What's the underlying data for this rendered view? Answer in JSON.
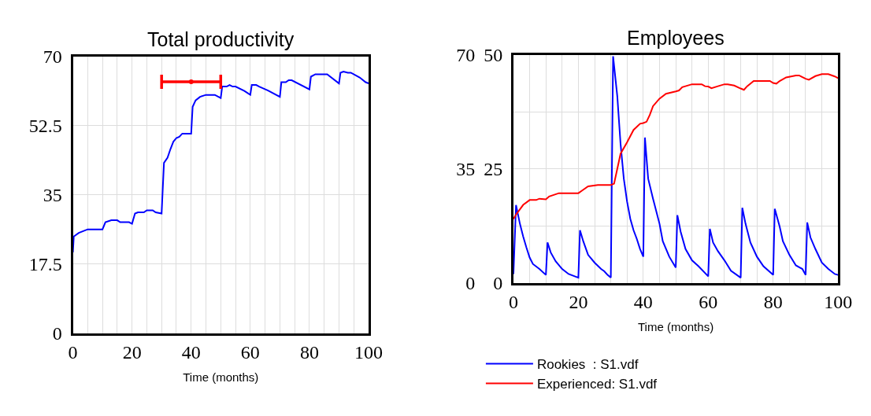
{
  "chart_data": [
    {
      "type": "line",
      "title": "Total productivity",
      "xlabel": "Time (months)",
      "xlim": [
        0,
        100
      ],
      "ylim": [
        0,
        70
      ],
      "xticks": [
        0,
        {
          "value": 5,
          "label": null
        },
        {
          "value": 10,
          "label": null
        },
        {
          "value": 15,
          "label": null
        },
        20,
        {
          "value": 25,
          "label": null
        },
        {
          "value": 30,
          "label": null
        },
        {
          "value": 35,
          "label": null
        },
        40,
        {
          "value": 45,
          "label": null
        },
        {
          "value": 50,
          "label": null
        },
        {
          "value": 55,
          "label": null
        },
        60,
        {
          "value": 65,
          "label": null
        },
        {
          "value": 70,
          "label": null
        },
        {
          "value": 75,
          "label": null
        },
        80,
        {
          "value": 85,
          "label": null
        },
        {
          "value": 90,
          "label": null
        },
        {
          "value": 95,
          "label": null
        },
        100
      ],
      "yticks": [
        0,
        17.5,
        35,
        52.5,
        70
      ],
      "grid": true,
      "legend": false,
      "series": [
        {
          "color": "#0000ff",
          "x": [
            0,
            0.3,
            2,
            5,
            10,
            11,
            13,
            15,
            16,
            19,
            20,
            21,
            22,
            24,
            25,
            27,
            28,
            30,
            30.8,
            32,
            33,
            34,
            35,
            36,
            37,
            40,
            40.5,
            41.5,
            43,
            45,
            48,
            50,
            50.5,
            52,
            53,
            54,
            55,
            58,
            60,
            60.5,
            62,
            63,
            66,
            70,
            70.5,
            72,
            73,
            74,
            80,
            80.5,
            82,
            86,
            90,
            90.5,
            91.5,
            93,
            94,
            97,
            99,
            100
          ],
          "values": [
            20.5,
            24.5,
            25.4,
            26.3,
            26.3,
            28.1,
            28.6,
            28.6,
            28.1,
            28.1,
            27.7,
            30.3,
            30.6,
            30.6,
            31.1,
            31.1,
            30.6,
            30.3,
            43.1,
            44.4,
            46.6,
            48.5,
            49.4,
            49.7,
            50.5,
            50.5,
            57.3,
            58.9,
            59.8,
            60.3,
            60.3,
            59.5,
            62.4,
            62.4,
            62.8,
            62.4,
            62.4,
            61.3,
            60.3,
            62.8,
            62.8,
            62.4,
            61.4,
            59.8,
            63.5,
            63.5,
            64.0,
            64.0,
            61.7,
            64.9,
            65.5,
            65.5,
            63.2,
            65.9,
            66.2,
            65.9,
            65.9,
            64.7,
            63.5,
            63.2
          ]
        },
        {
          "type": "scatter",
          "color": "#ff0000",
          "x": [
            40
          ],
          "values": [
            63.6
          ],
          "xerrors": [
            10
          ],
          "marker": "none"
        }
      ]
    },
    {
      "type": "line",
      "title": "Employees",
      "xlabel": "Time (months)",
      "xlim": [
        0,
        100
      ],
      "ylim": [
        0,
        50
      ],
      "y2lim": [
        0,
        70
      ],
      "xticks": [
        0,
        {
          "value": 5,
          "label": null
        },
        {
          "value": 10,
          "label": null
        },
        {
          "value": 15,
          "label": null
        },
        20,
        {
          "value": 25,
          "label": null
        },
        {
          "value": 30,
          "label": null
        },
        {
          "value": 35,
          "label": null
        },
        40,
        {
          "value": 45,
          "label": null
        },
        {
          "value": 50,
          "label": null
        },
        {
          "value": 55,
          "label": null
        },
        60,
        {
          "value": 65,
          "label": null
        },
        {
          "value": 70,
          "label": null
        },
        {
          "value": 75,
          "label": null
        },
        80,
        {
          "value": 85,
          "label": null
        },
        {
          "value": 90,
          "label": null
        },
        {
          "value": 95,
          "label": null
        },
        100
      ],
      "yticks": [
        0,
        {
          "value": 12.5,
          "label": null
        },
        25,
        {
          "value": 37.5,
          "label": null
        },
        50
      ],
      "y2ticks": [
        0,
        35,
        70
      ],
      "grid": true,
      "legend": "bottom",
      "series": [
        {
          "name": "Rookies  : S1.vdf",
          "color": "#0000ff",
          "x": [
            0,
            0.8,
            2,
            3,
            4,
            5,
            6,
            8,
            10,
            10.5,
            11.5,
            13,
            15,
            17,
            20,
            20.5,
            21.5,
            23,
            25,
            27,
            28,
            29,
            30,
            30.7,
            32,
            33,
            34,
            35,
            36,
            37,
            38,
            39,
            40,
            40.5,
            41.5,
            43,
            45,
            46,
            48,
            50,
            50.5,
            51.5,
            53,
            55,
            57,
            60,
            60.5,
            61.5,
            63,
            65,
            67,
            70,
            70.5,
            71.5,
            73,
            75,
            77,
            80,
            80.5,
            82,
            83,
            85,
            87,
            89,
            90,
            90.5,
            91.5,
            93,
            95,
            97,
            99,
            100
          ],
          "values": [
            2.0,
            17.1,
            13.0,
            10.2,
            7.8,
            5.6,
            4.2,
            3.1,
            1.8,
            8.9,
            6.7,
            4.8,
            3.1,
            2.0,
            1.2,
            11.6,
            9.2,
            6.2,
            4.5,
            3.1,
            2.6,
            1.8,
            1.2,
            49.7,
            40.9,
            30.5,
            22.9,
            17.9,
            14.1,
            11.6,
            9.7,
            7.5,
            5.8,
            31.9,
            22.9,
            18.5,
            13.0,
            9.2,
            5.8,
            3.4,
            14.9,
            11.3,
            7.5,
            5.0,
            3.7,
            1.5,
            11.9,
            8.9,
            7.0,
            5.0,
            2.7,
            1.2,
            16.5,
            13.0,
            8.9,
            5.8,
            3.7,
            1.8,
            16.3,
            12.4,
            9.2,
            6.2,
            3.9,
            3.1,
            1.8,
            13.3,
            10.0,
            7.5,
            4.5,
            3.1,
            2.0,
            1.8
          ]
        },
        {
          "name": "Experienced: S1.vdf",
          "color": "#ff0000",
          "axis": "y2",
          "x": [
            0,
            1,
            3,
            5,
            7,
            8,
            10,
            11,
            14,
            20,
            21,
            23,
            26,
            30,
            31,
            32,
            33,
            35,
            37,
            39,
            40,
            41,
            42,
            43,
            45,
            47,
            50,
            51,
            52,
            55,
            58,
            59,
            60,
            61,
            63,
            65,
            66,
            68,
            70,
            71,
            72,
            74,
            79,
            80,
            81,
            82,
            84,
            87,
            88,
            90,
            91,
            93,
            95,
            97,
            99,
            100
          ],
          "values": [
            19.7,
            21.3,
            24.0,
            25.5,
            25.5,
            25.9,
            25.7,
            26.6,
            27.6,
            27.6,
            28.3,
            29.7,
            30.1,
            30.1,
            30.5,
            35.1,
            39.7,
            43.2,
            47.0,
            48.9,
            49.1,
            49.5,
            51.6,
            54.3,
            56.6,
            58.1,
            58.8,
            59.1,
            60.1,
            61.0,
            61.0,
            60.4,
            60.3,
            59.8,
            60.4,
            61.0,
            61.0,
            60.6,
            59.7,
            59.3,
            60.4,
            62.0,
            62.0,
            61.4,
            61.2,
            62.0,
            63.1,
            63.7,
            63.7,
            62.7,
            62.4,
            63.5,
            64.1,
            64.1,
            63.4,
            62.9
          ]
        }
      ]
    }
  ]
}
